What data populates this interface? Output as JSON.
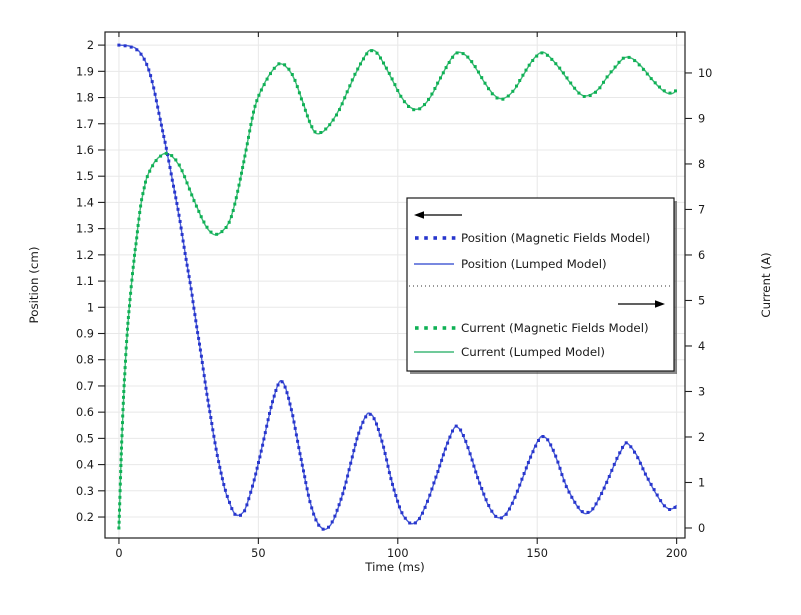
{
  "chart_data": {
    "type": "line",
    "title": "",
    "xlabel": "Time (ms)",
    "ylabel_left": "Position (cm)",
    "ylabel_right": "Current (A)",
    "grid": true,
    "x_axis": {
      "min": -5,
      "max": 203,
      "ticks": [
        0,
        50,
        100,
        150,
        200
      ],
      "labels": [
        "0",
        "50",
        "100",
        "150",
        "200"
      ]
    },
    "left_axis": {
      "min": 0.12,
      "max": 2.05,
      "ticks": [
        0.2,
        0.3,
        0.4,
        0.5,
        0.6,
        0.7,
        0.8,
        0.9,
        1,
        1.1,
        1.2,
        1.3,
        1.4,
        1.5,
        1.6,
        1.7,
        1.8,
        1.9,
        2
      ],
      "labels": [
        "0.2",
        "0.3",
        "0.4",
        "0.5",
        "0.6",
        "0.7",
        "0.8",
        "0.9",
        "1",
        "1.1",
        "1.2",
        "1.3",
        "1.4",
        "1.5",
        "1.6",
        "1.7",
        "1.8",
        "1.9",
        "2"
      ]
    },
    "right_axis": {
      "min": -0.22,
      "max": 10.9,
      "ticks": [
        0,
        1,
        2,
        3,
        4,
        5,
        6,
        7,
        8,
        9,
        10
      ],
      "labels": [
        "0",
        "1",
        "2",
        "3",
        "4",
        "5",
        "6",
        "7",
        "8",
        "9",
        "10"
      ]
    },
    "series": [
      {
        "id": "position_mf",
        "label": "Position (Magnetic Fields Model)",
        "style": "dots",
        "axis": "left",
        "color": "#2836cd",
        "points_key": "position"
      },
      {
        "id": "position_lumped",
        "label": "Position (Lumped Model)",
        "style": "line",
        "axis": "left",
        "color": "#4c60d6",
        "points_key": "position"
      },
      {
        "id": "current_mf",
        "label": "Current (Magnetic Fields Model)",
        "style": "dots",
        "axis": "right",
        "color": "#0fb155",
        "points_key": "current"
      },
      {
        "id": "current_lumped",
        "label": "Current (Lumped Model)",
        "style": "line",
        "axis": "right",
        "color": "#41b878",
        "points_key": "current"
      }
    ],
    "points": {
      "position": [
        [
          0,
          2.0
        ],
        [
          2,
          1.999
        ],
        [
          4,
          1.996
        ],
        [
          6,
          1.988
        ],
        [
          8,
          1.966
        ],
        [
          10,
          1.925
        ],
        [
          12,
          1.855
        ],
        [
          14,
          1.76
        ],
        [
          16,
          1.655
        ],
        [
          18,
          1.55
        ],
        [
          20,
          1.44
        ],
        [
          22,
          1.32
        ],
        [
          24,
          1.19
        ],
        [
          26,
          1.06
        ],
        [
          28,
          0.92
        ],
        [
          30,
          0.78
        ],
        [
          32,
          0.64
        ],
        [
          34,
          0.51
        ],
        [
          36,
          0.4
        ],
        [
          38,
          0.305
        ],
        [
          40,
          0.245
        ],
        [
          41.5,
          0.213
        ],
        [
          43,
          0.207
        ],
        [
          45,
          0.225
        ],
        [
          47,
          0.285
        ],
        [
          49,
          0.36
        ],
        [
          52,
          0.5
        ],
        [
          55,
          0.635
        ],
        [
          57.5,
          0.715
        ],
        [
          59.5,
          0.7
        ],
        [
          62,
          0.6
        ],
        [
          65,
          0.44
        ],
        [
          68,
          0.28
        ],
        [
          70.5,
          0.195
        ],
        [
          72.5,
          0.16
        ],
        [
          74.5,
          0.155
        ],
        [
          77,
          0.19
        ],
        [
          80,
          0.28
        ],
        [
          83,
          0.4
        ],
        [
          86,
          0.52
        ],
        [
          88.5,
          0.585
        ],
        [
          90,
          0.595
        ],
        [
          92,
          0.565
        ],
        [
          95,
          0.46
        ],
        [
          98,
          0.33
        ],
        [
          101,
          0.225
        ],
        [
          103.5,
          0.185
        ],
        [
          105.5,
          0.175
        ],
        [
          108,
          0.2
        ],
        [
          111,
          0.27
        ],
        [
          114,
          0.36
        ],
        [
          117,
          0.46
        ],
        [
          119.5,
          0.525
        ],
        [
          121,
          0.545
        ],
        [
          123,
          0.52
        ],
        [
          126,
          0.44
        ],
        [
          129,
          0.34
        ],
        [
          132,
          0.255
        ],
        [
          134.5,
          0.21
        ],
        [
          136.5,
          0.197
        ],
        [
          139,
          0.215
        ],
        [
          142,
          0.275
        ],
        [
          145,
          0.355
        ],
        [
          148,
          0.44
        ],
        [
          150.5,
          0.495
        ],
        [
          152,
          0.508
        ],
        [
          154,
          0.49
        ],
        [
          157,
          0.42
        ],
        [
          160,
          0.33
        ],
        [
          163,
          0.265
        ],
        [
          165.5,
          0.225
        ],
        [
          167.5,
          0.213
        ],
        [
          170,
          0.23
        ],
        [
          173,
          0.29
        ],
        [
          176,
          0.36
        ],
        [
          179,
          0.43
        ],
        [
          181.5,
          0.478
        ],
        [
          183,
          0.475
        ],
        [
          186,
          0.43
        ],
        [
          189,
          0.36
        ],
        [
          192,
          0.3
        ],
        [
          195,
          0.25
        ],
        [
          197,
          0.232
        ],
        [
          198.5,
          0.232
        ],
        [
          200,
          0.245
        ]
      ],
      "current": [
        [
          0,
          0
        ],
        [
          1,
          1.9
        ],
        [
          2,
          3.3
        ],
        [
          3,
          4.3
        ],
        [
          4,
          5.05
        ],
        [
          5,
          5.65
        ],
        [
          6,
          6.2
        ],
        [
          7,
          6.72
        ],
        [
          8,
          7.15
        ],
        [
          9,
          7.45
        ],
        [
          10,
          7.7
        ],
        [
          12,
          7.97
        ],
        [
          14,
          8.13
        ],
        [
          16.5,
          8.23
        ],
        [
          19,
          8.17
        ],
        [
          22,
          7.92
        ],
        [
          25,
          7.5
        ],
        [
          28,
          7.05
        ],
        [
          31,
          6.65
        ],
        [
          34,
          6.45
        ],
        [
          37,
          6.52
        ],
        [
          40,
          6.8
        ],
        [
          43,
          7.5
        ],
        [
          46,
          8.45
        ],
        [
          49,
          9.3
        ],
        [
          52,
          9.75
        ],
        [
          55,
          10.05
        ],
        [
          57.8,
          10.2
        ],
        [
          60.5,
          10.1
        ],
        [
          63,
          9.85
        ],
        [
          66,
          9.35
        ],
        [
          68.5,
          8.9
        ],
        [
          70.5,
          8.68
        ],
        [
          73,
          8.7
        ],
        [
          76,
          8.9
        ],
        [
          79,
          9.2
        ],
        [
          82,
          9.6
        ],
        [
          85,
          10.0
        ],
        [
          88,
          10.35
        ],
        [
          90,
          10.5
        ],
        [
          92.5,
          10.45
        ],
        [
          95,
          10.2
        ],
        [
          98,
          9.85
        ],
        [
          101,
          9.5
        ],
        [
          104,
          9.27
        ],
        [
          106.5,
          9.2
        ],
        [
          109,
          9.27
        ],
        [
          112,
          9.5
        ],
        [
          115,
          9.85
        ],
        [
          118,
          10.2
        ],
        [
          120.5,
          10.42
        ],
        [
          122.5,
          10.45
        ],
        [
          125,
          10.35
        ],
        [
          128,
          10.1
        ],
        [
          131,
          9.8
        ],
        [
          134,
          9.55
        ],
        [
          136.5,
          9.44
        ],
        [
          139,
          9.47
        ],
        [
          142,
          9.65
        ],
        [
          145,
          9.95
        ],
        [
          148,
          10.25
        ],
        [
          150.5,
          10.42
        ],
        [
          152.5,
          10.45
        ],
        [
          155,
          10.32
        ],
        [
          158,
          10.1
        ],
        [
          161,
          9.85
        ],
        [
          164,
          9.62
        ],
        [
          166.5,
          9.5
        ],
        [
          169,
          9.52
        ],
        [
          172,
          9.65
        ],
        [
          175,
          9.9
        ],
        [
          178,
          10.12
        ],
        [
          180.5,
          10.3
        ],
        [
          182.5,
          10.35
        ],
        [
          185,
          10.28
        ],
        [
          188,
          10.1
        ],
        [
          191,
          9.87
        ],
        [
          194,
          9.67
        ],
        [
          196.5,
          9.56
        ],
        [
          198.5,
          9.55
        ],
        [
          200,
          9.62
        ]
      ]
    },
    "legend": {
      "entries": [
        {
          "kind": "arrow",
          "dir": "left"
        },
        {
          "kind": "series",
          "id": "position_mf"
        },
        {
          "kind": "series",
          "id": "position_lumped"
        },
        {
          "kind": "separator"
        },
        {
          "kind": "arrow",
          "dir": "right"
        },
        {
          "kind": "series",
          "id": "current_mf"
        },
        {
          "kind": "series",
          "id": "current_lumped"
        }
      ]
    }
  },
  "colors": {
    "background": "#ffffff",
    "gridline": "#e8e8e8",
    "frame": "#202020",
    "tick_text": "#1a1a1a",
    "legend_border": "#1a1a1a",
    "legend_shadow": "rgba(0,0,0,0.45)",
    "separator": "#333333",
    "arrow": "#000000"
  }
}
